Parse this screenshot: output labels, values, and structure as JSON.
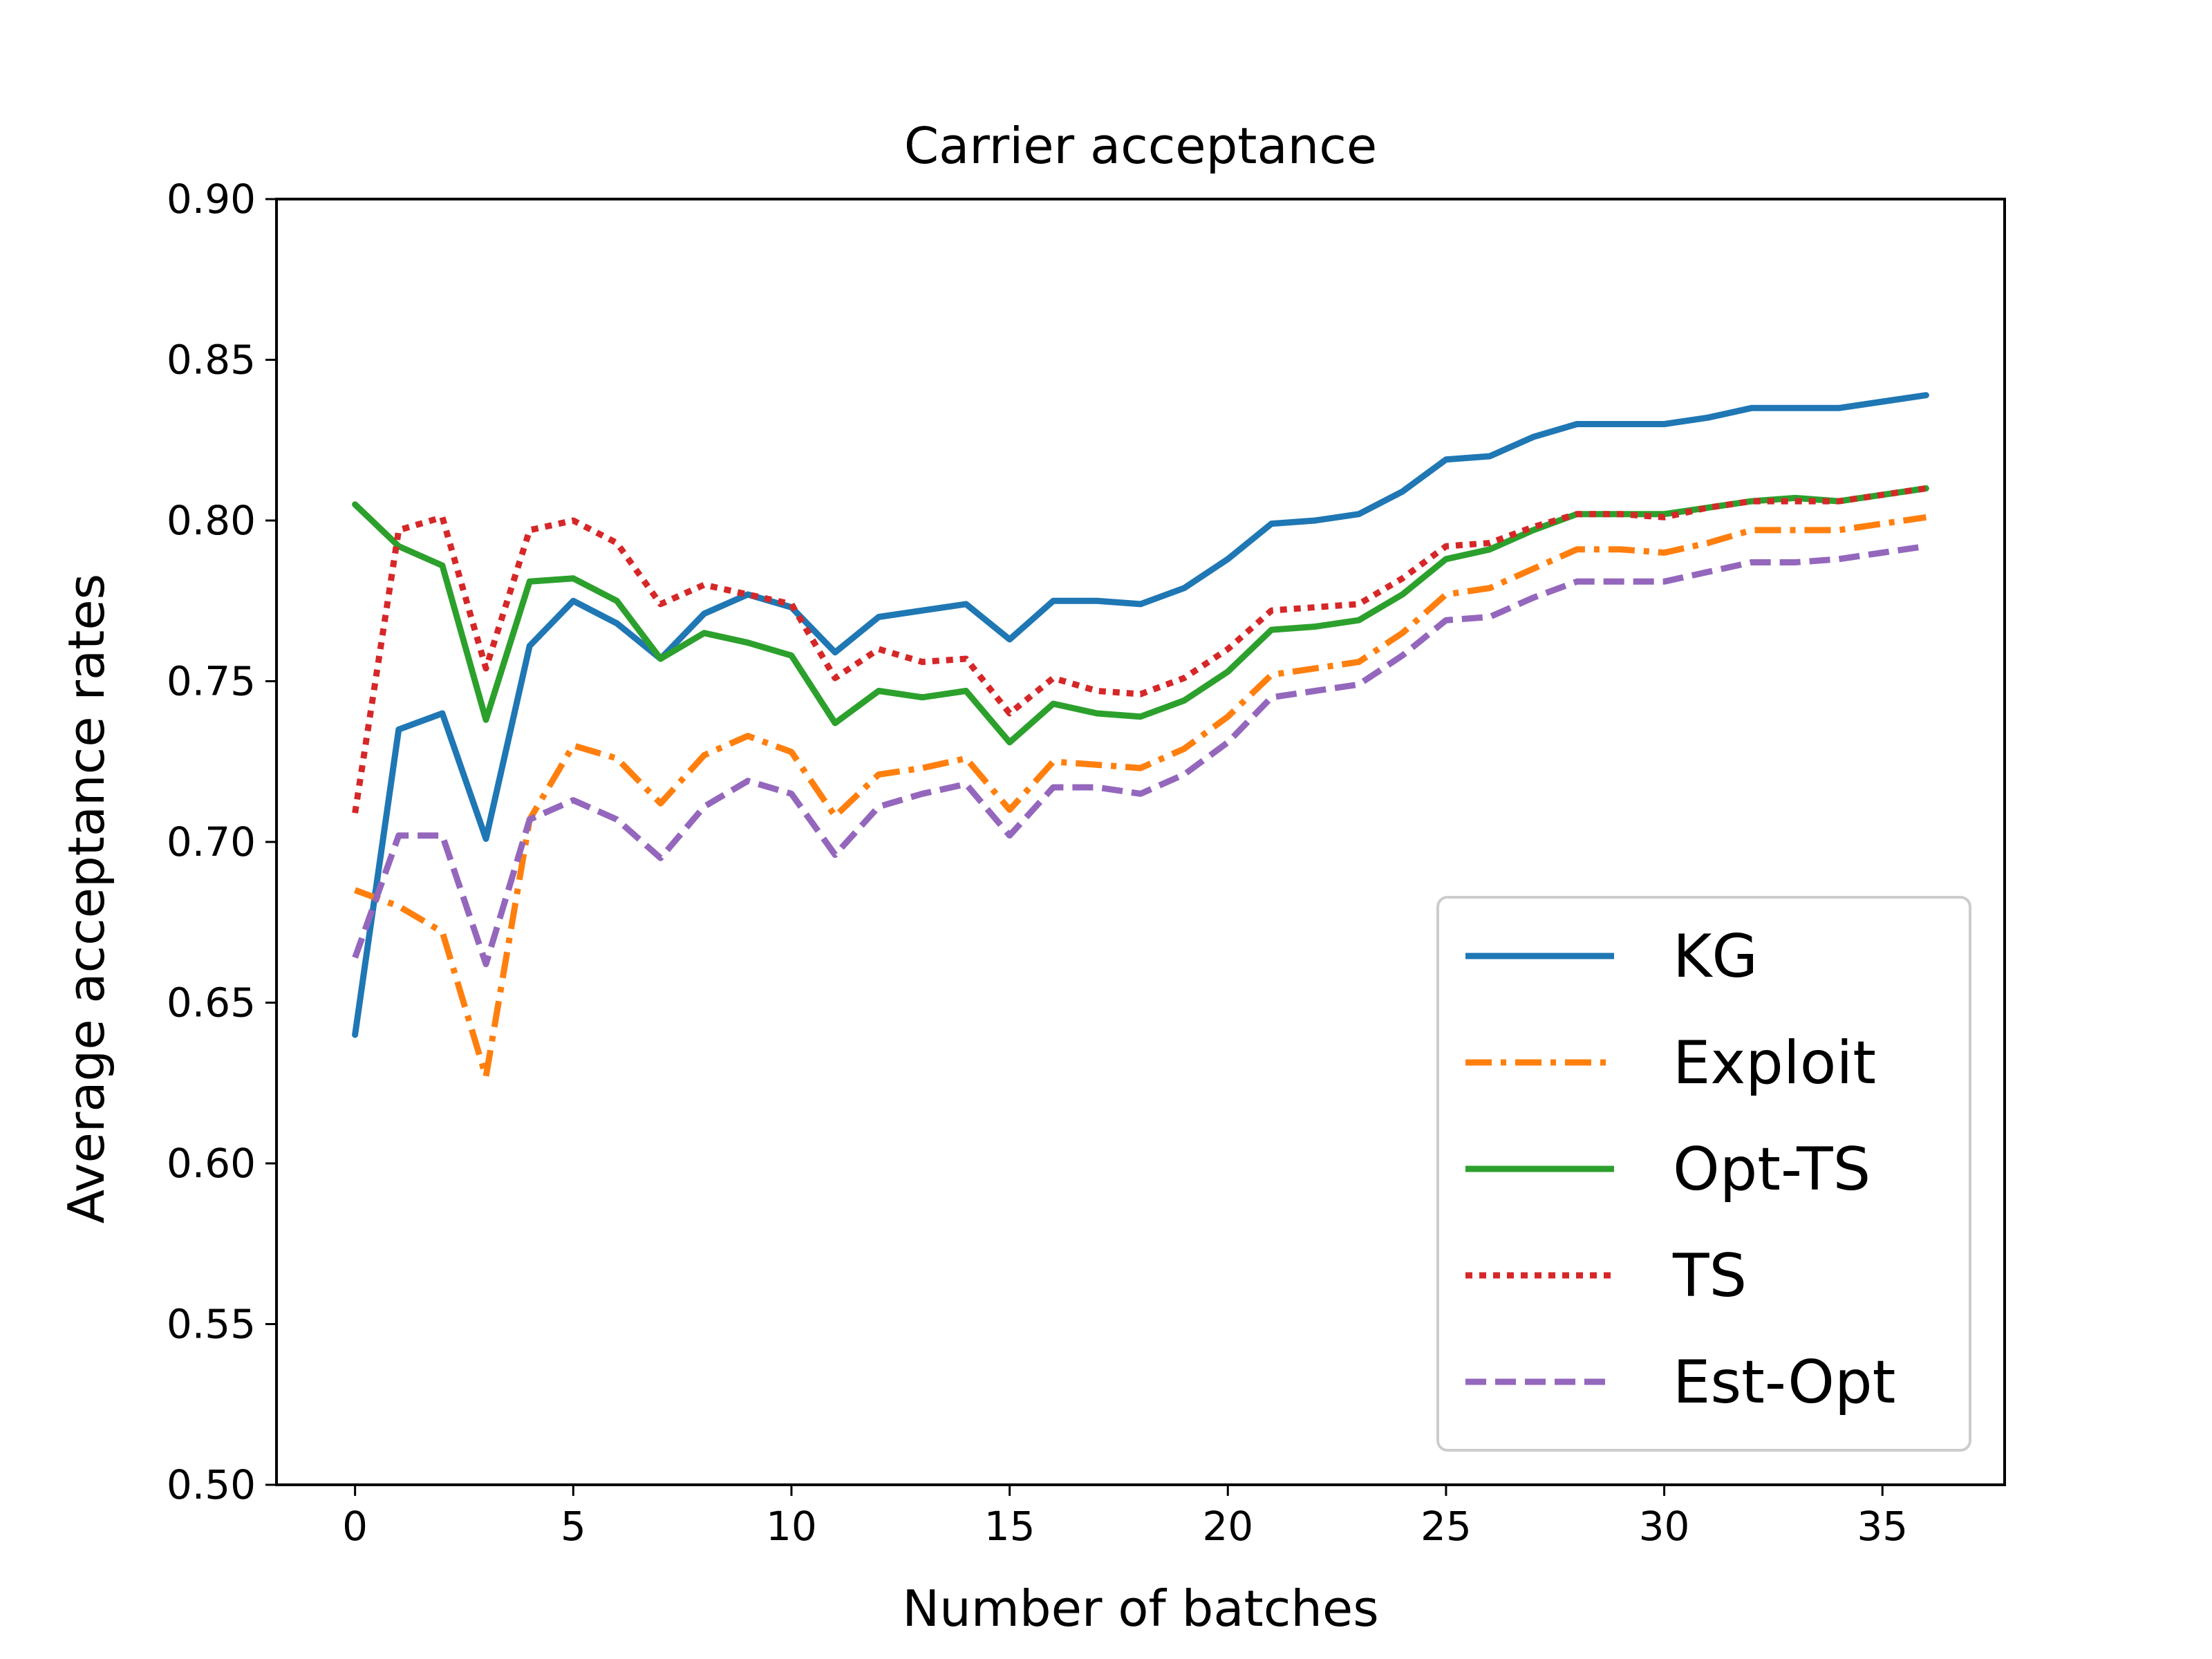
{
  "chart_data": {
    "type": "line",
    "title": "Carrier acceptance",
    "xlabel": "Number of batches",
    "ylabel": "Average acceptance rates",
    "xlim": [
      -1.8,
      37.8
    ],
    "ylim": [
      0.5,
      0.9
    ],
    "xticks": [
      0,
      5,
      10,
      15,
      20,
      25,
      30,
      35
    ],
    "yticks": [
      0.5,
      0.55,
      0.6,
      0.65,
      0.7,
      0.75,
      0.8,
      0.85,
      0.9
    ],
    "xtick_labels": [
      "0",
      "5",
      "10",
      "15",
      "20",
      "25",
      "30",
      "35"
    ],
    "ytick_labels": [
      "0.50",
      "0.55",
      "0.60",
      "0.65",
      "0.70",
      "0.75",
      "0.80",
      "0.85",
      "0.90"
    ],
    "grid": false,
    "legend_position": "lower-right",
    "x": [
      0,
      1,
      2,
      3,
      4,
      5,
      6,
      7,
      8,
      9,
      10,
      11,
      12,
      13,
      14,
      15,
      16,
      17,
      18,
      19,
      20,
      21,
      22,
      23,
      24,
      25,
      26,
      27,
      28,
      29,
      30,
      31,
      32,
      33,
      34,
      35,
      36
    ],
    "series": [
      {
        "name": "KG",
        "color": "#1f77b4",
        "style": "solid",
        "values": [
          0.64,
          0.735,
          0.74,
          0.701,
          0.761,
          0.775,
          0.768,
          0.757,
          0.771,
          0.777,
          0.773,
          0.759,
          0.77,
          0.772,
          0.774,
          0.763,
          0.775,
          0.775,
          0.774,
          0.779,
          0.788,
          0.799,
          0.8,
          0.802,
          0.809,
          0.819,
          0.82,
          0.826,
          0.83,
          0.83,
          0.83,
          0.832,
          0.835,
          0.835,
          0.835,
          0.837,
          0.839
        ]
      },
      {
        "name": "Exploit",
        "color": "#ff7f0e",
        "style": "dashdot",
        "values": [
          0.685,
          0.68,
          0.672,
          0.627,
          0.707,
          0.73,
          0.726,
          0.712,
          0.727,
          0.733,
          0.728,
          0.708,
          0.721,
          0.723,
          0.726,
          0.71,
          0.725,
          0.724,
          0.723,
          0.729,
          0.739,
          0.752,
          0.754,
          0.756,
          0.765,
          0.777,
          0.779,
          0.785,
          0.791,
          0.791,
          0.79,
          0.793,
          0.797,
          0.797,
          0.797,
          0.799,
          0.801
        ]
      },
      {
        "name": "Opt-TS",
        "color": "#2ca02c",
        "style": "solid",
        "values": [
          0.805,
          0.792,
          0.786,
          0.738,
          0.781,
          0.782,
          0.775,
          0.757,
          0.765,
          0.762,
          0.758,
          0.737,
          0.747,
          0.745,
          0.747,
          0.731,
          0.743,
          0.74,
          0.739,
          0.744,
          0.753,
          0.766,
          0.767,
          0.769,
          0.777,
          0.788,
          0.791,
          0.797,
          0.802,
          0.802,
          0.802,
          0.804,
          0.806,
          0.807,
          0.806,
          0.808,
          0.81
        ]
      },
      {
        "name": "TS",
        "color": "#d62728",
        "style": "dotted",
        "values": [
          0.709,
          0.797,
          0.801,
          0.754,
          0.797,
          0.8,
          0.793,
          0.774,
          0.78,
          0.777,
          0.774,
          0.751,
          0.76,
          0.756,
          0.757,
          0.74,
          0.751,
          0.747,
          0.746,
          0.751,
          0.76,
          0.772,
          0.773,
          0.774,
          0.782,
          0.792,
          0.793,
          0.798,
          0.802,
          0.802,
          0.801,
          0.804,
          0.806,
          0.806,
          0.806,
          0.808,
          0.81
        ]
      },
      {
        "name": "Est-Opt",
        "color": "#9467bd",
        "style": "dashed",
        "values": [
          0.664,
          0.702,
          0.702,
          0.662,
          0.707,
          0.713,
          0.707,
          0.695,
          0.711,
          0.719,
          0.715,
          0.696,
          0.711,
          0.715,
          0.718,
          0.702,
          0.717,
          0.717,
          0.715,
          0.721,
          0.731,
          0.745,
          0.747,
          0.749,
          0.758,
          0.769,
          0.77,
          0.776,
          0.781,
          0.781,
          0.781,
          0.784,
          0.787,
          0.787,
          0.788,
          0.79,
          0.792
        ]
      }
    ]
  }
}
